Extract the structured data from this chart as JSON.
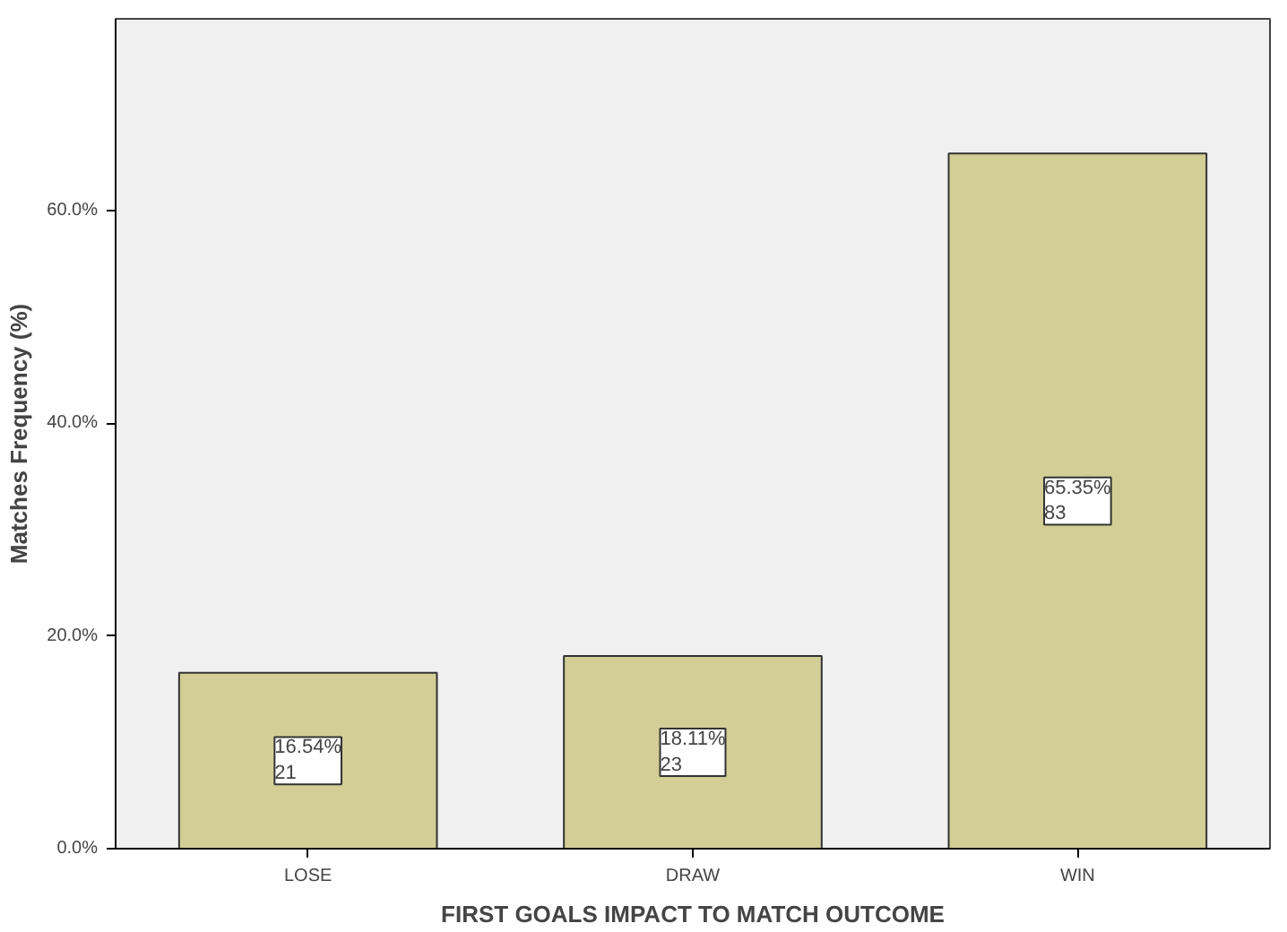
{
  "chart_data": {
    "type": "bar",
    "categories": [
      "LOSE",
      "DRAW",
      "WIN"
    ],
    "values": [
      16.54,
      18.11,
      65.35
    ],
    "value_labels": [
      "16.54%\n21",
      "18.11%\n23",
      "65.35%\n83"
    ],
    "color": "#d3ce96",
    "xlabel": "FIRST GOALS IMPACT TO MATCH OUTCOME",
    "ylabel": "Matches Frequency (%)",
    "ylim": [
      0,
      78
    ],
    "yticks": [
      {
        "value": 0,
        "label": "0.0%"
      },
      {
        "value": 20,
        "label": "20.0%"
      },
      {
        "value": 40,
        "label": "40.0%"
      },
      {
        "value": 60,
        "label": "60.0%"
      }
    ],
    "grid": false
  }
}
